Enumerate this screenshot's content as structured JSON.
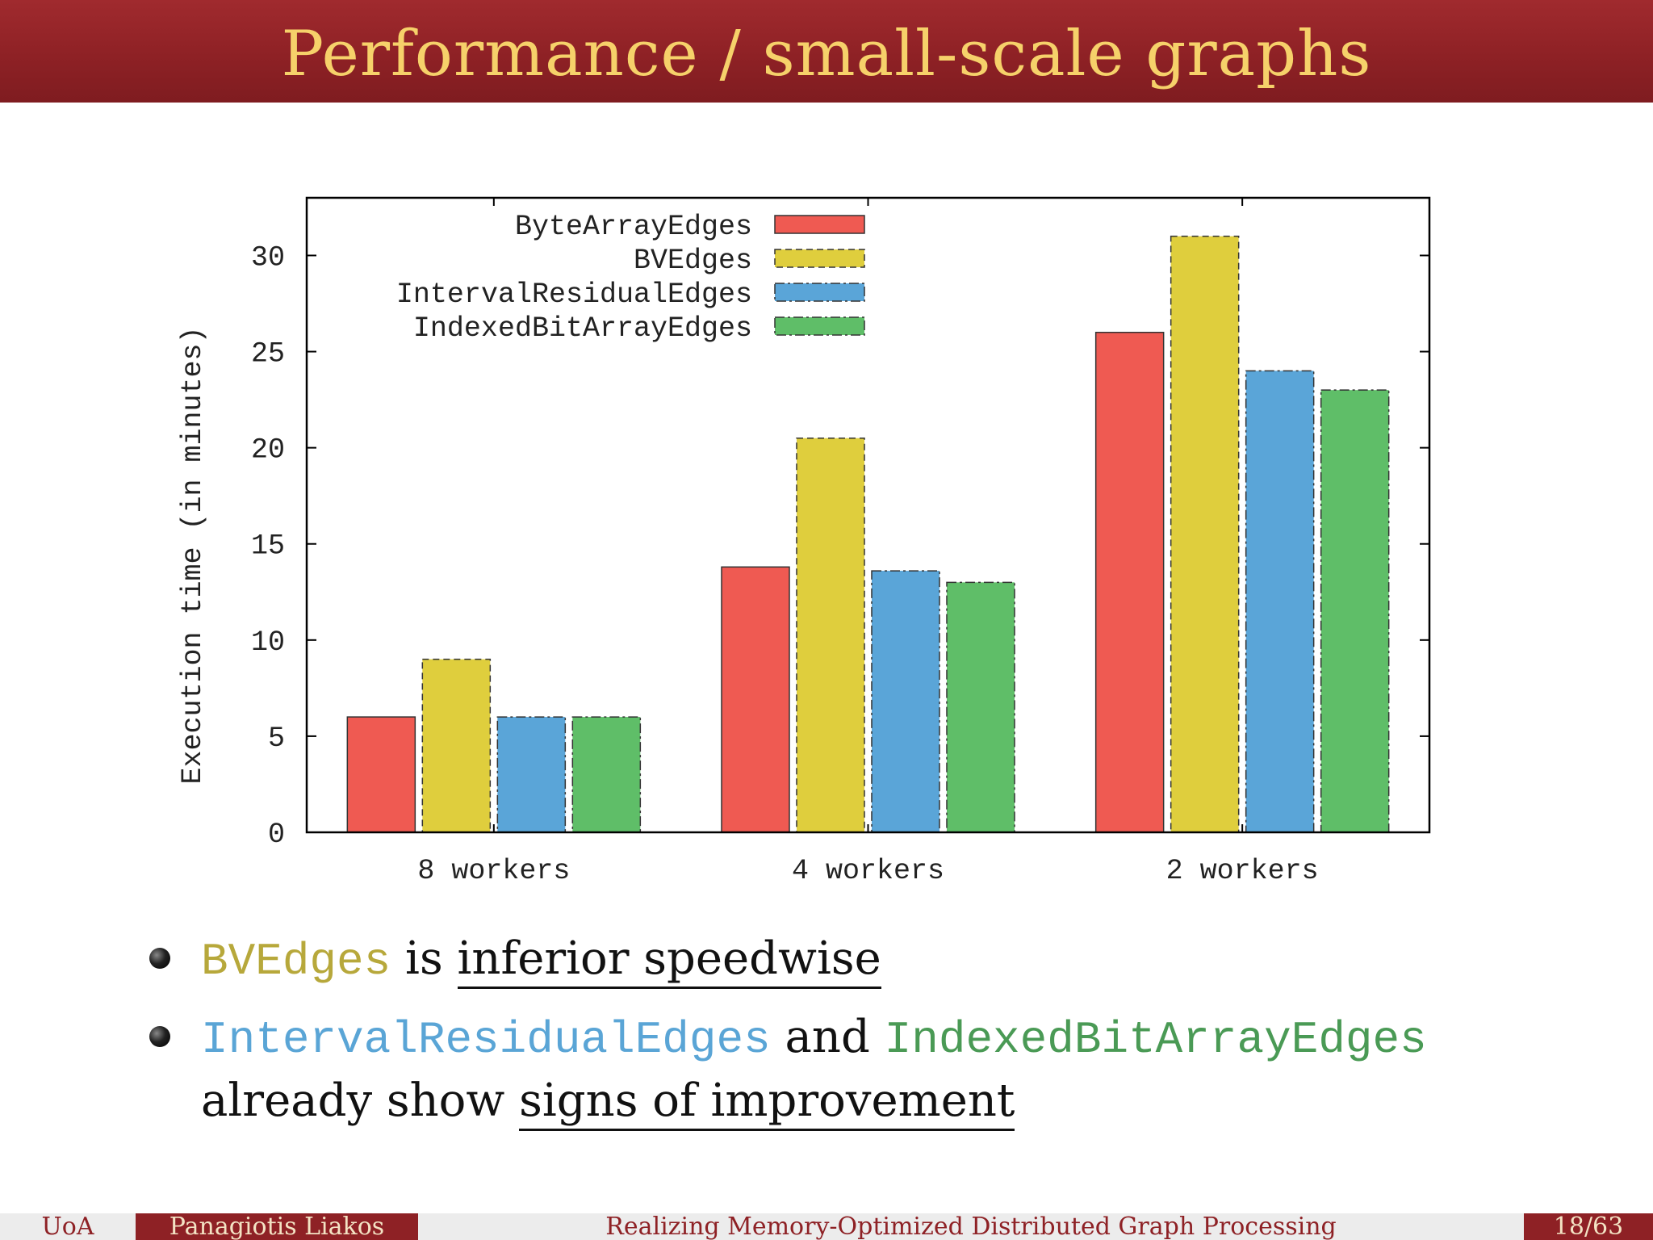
{
  "slide": {
    "title": "Performance / small-scale graphs"
  },
  "chart_data": {
    "type": "bar",
    "title": "",
    "xlabel": "",
    "ylabel": "Execution time (in minutes)",
    "categories": [
      "8 workers",
      "4 workers",
      "2 workers"
    ],
    "ylim": [
      0,
      33
    ],
    "yticks": [
      0,
      5,
      10,
      15,
      20,
      25,
      30
    ],
    "legend_position": "top-left",
    "grid": false,
    "series": [
      {
        "name": "ByteArrayEdges",
        "values": [
          6,
          13.8,
          26
        ],
        "color": "#ef5a52",
        "dash": "solid"
      },
      {
        "name": "BVEdges",
        "values": [
          9,
          20.5,
          31
        ],
        "color": "#dfce3d",
        "dash": "dashed"
      },
      {
        "name": "IntervalResidualEdges",
        "values": [
          6,
          13.6,
          24
        ],
        "color": "#5aa5d8",
        "dash": "dashdot"
      },
      {
        "name": "IndexedBitArrayEdges",
        "values": [
          6,
          13,
          23
        ],
        "color": "#5fbe68",
        "dash": "dashdot"
      }
    ]
  },
  "bullets": {
    "b1_term": "BVEdges",
    "b1_is": " is ",
    "b1_rest": "inferior speedwise",
    "b2_term1": "IntervalResidualEdges",
    "b2_and": " and ",
    "b2_term2": "IndexedBitArrayEdges",
    "b2_line2_a": "already show ",
    "b2_line2_b": "signs of improvement"
  },
  "footer": {
    "institution": "UoA",
    "author": "Panagiotis Liakos",
    "talk_title": "Realizing Memory-Optimized Distributed Graph Processing",
    "page": "18/63"
  },
  "colors": {
    "title_bar": "#8e2125",
    "title_text": "#f6d16a"
  }
}
